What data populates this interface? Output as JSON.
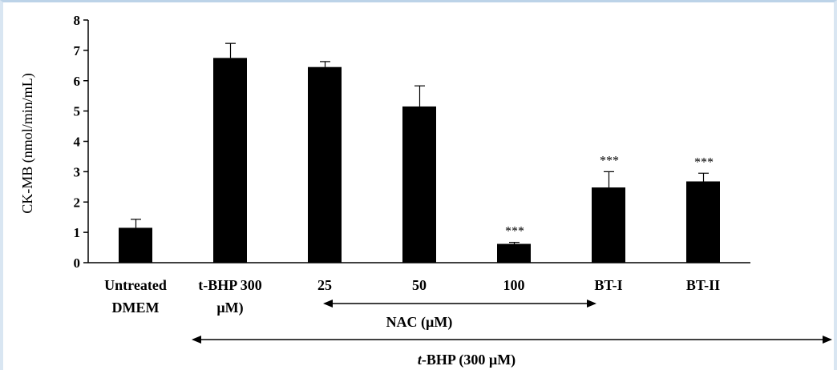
{
  "chart_data": {
    "type": "bar",
    "title": "",
    "xlabel": "",
    "ylabel": "CK-MB (nmol/min/mL)",
    "ylim": [
      0,
      8
    ],
    "yticks": [
      0,
      1,
      2,
      3,
      4,
      5,
      6,
      7,
      8
    ],
    "grid": false,
    "bar_color": "#000000",
    "categories": [
      [
        "Untreated",
        "DMEM"
      ],
      [
        "t-BHP 300",
        "µM)"
      ],
      [
        "25"
      ],
      [
        "50"
      ],
      [
        "100"
      ],
      [
        "BT-I"
      ],
      [
        "BT-II"
      ]
    ],
    "values": [
      1.15,
      6.75,
      6.45,
      5.15,
      0.62,
      2.48,
      2.68
    ],
    "errors": [
      0.28,
      0.48,
      0.18,
      0.68,
      0.05,
      0.52,
      0.27
    ],
    "significance": [
      "",
      "",
      "",
      "",
      "***",
      "***",
      "***"
    ],
    "groups": [
      {
        "label": "NAC (µM)",
        "italic_prefix": "",
        "from": 2,
        "to": 4
      },
      {
        "label": "-BHP (300 µM)",
        "italic_prefix": "t",
        "from": 1,
        "to": 6
      }
    ]
  }
}
